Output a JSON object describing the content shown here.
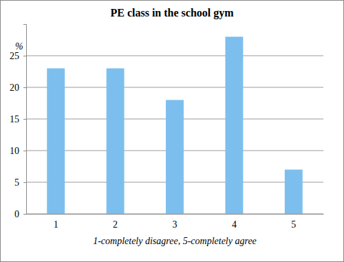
{
  "chart_data": {
    "type": "bar",
    "title": "PE class in the school gym",
    "categories": [
      "1",
      "2",
      "3",
      "4",
      "5"
    ],
    "values": [
      23,
      23,
      18,
      28,
      7
    ],
    "color": "#7cbfee",
    "y_label": "%",
    "x_label": "1-completely disagree, 5-completely agree",
    "ylim": [
      0,
      30
    ],
    "yticks": [
      0,
      5,
      10,
      15,
      20,
      25
    ],
    "grid": true
  }
}
